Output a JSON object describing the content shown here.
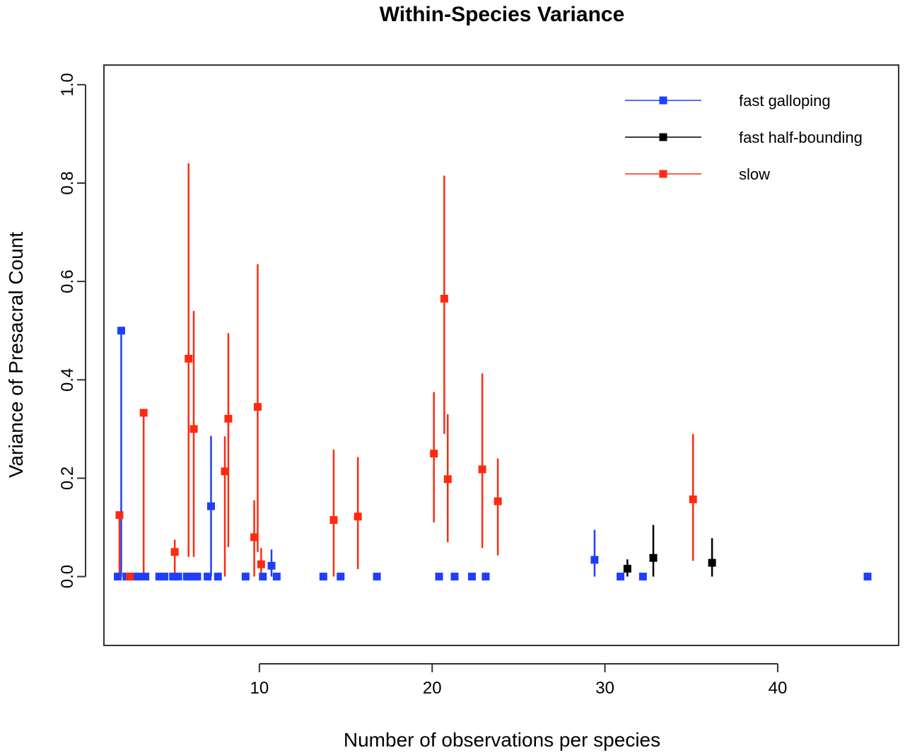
{
  "chart_data": {
    "type": "scatter",
    "title": "Within-Species Variance",
    "xlabel": "Number of observations per species",
    "ylabel": "Variance of Presacral Count",
    "xlim": [
      1,
      47
    ],
    "ylim": [
      -0.14,
      1.04
    ],
    "x_ticks": [
      10,
      20,
      30,
      40
    ],
    "y_ticks": [
      0.0,
      0.2,
      0.4,
      0.6,
      0.8,
      1.0
    ],
    "x_tick_labels": [
      "10",
      "20",
      "30",
      "40"
    ],
    "y_tick_labels": [
      "0.0",
      "0.2",
      "0.4",
      "0.6",
      "0.8",
      "1.0"
    ],
    "grid": false,
    "legend_position": "top-right",
    "error_bars": true,
    "series": [
      {
        "name": "fast galloping",
        "color": "#1f3fff",
        "points": [
          {
            "x": 1.8,
            "y": 0.0
          },
          {
            "x": 2.0,
            "y": 0.5,
            "lo": 0.0,
            "hi": 0.5
          },
          {
            "x": 2.3,
            "y": 0.0
          },
          {
            "x": 2.7,
            "y": 0.0
          },
          {
            "x": 3.0,
            "y": 0.0
          },
          {
            "x": 3.4,
            "y": 0.0
          },
          {
            "x": 4.2,
            "y": 0.0
          },
          {
            "x": 4.5,
            "y": 0.0
          },
          {
            "x": 5.0,
            "y": 0.0
          },
          {
            "x": 5.3,
            "y": 0.0
          },
          {
            "x": 5.8,
            "y": 0.0
          },
          {
            "x": 6.1,
            "y": 0.0
          },
          {
            "x": 6.4,
            "y": 0.0
          },
          {
            "x": 7.0,
            "y": 0.0
          },
          {
            "x": 7.2,
            "y": 0.143,
            "lo": 0.0,
            "hi": 0.286
          },
          {
            "x": 7.6,
            "y": 0.0
          },
          {
            "x": 9.2,
            "y": 0.0
          },
          {
            "x": 10.2,
            "y": 0.0
          },
          {
            "x": 10.7,
            "y": 0.022,
            "lo": 0.0,
            "hi": 0.055
          },
          {
            "x": 11.0,
            "y": 0.0
          },
          {
            "x": 13.7,
            "y": 0.0
          },
          {
            "x": 14.7,
            "y": 0.0
          },
          {
            "x": 16.8,
            "y": 0.0
          },
          {
            "x": 20.4,
            "y": 0.0
          },
          {
            "x": 21.3,
            "y": 0.0
          },
          {
            "x": 22.3,
            "y": 0.0
          },
          {
            "x": 23.1,
            "y": 0.0
          },
          {
            "x": 29.4,
            "y": 0.034,
            "lo": 0.0,
            "hi": 0.095
          },
          {
            "x": 30.9,
            "y": 0.0
          },
          {
            "x": 32.2,
            "y": 0.0
          },
          {
            "x": 45.2,
            "y": 0.0
          }
        ]
      },
      {
        "name": "fast half-bounding",
        "color": "#000000",
        "points": [
          {
            "x": 31.3,
            "y": 0.016,
            "lo": 0.0,
            "hi": 0.035
          },
          {
            "x": 32.8,
            "y": 0.038,
            "lo": 0.0,
            "hi": 0.105
          },
          {
            "x": 36.2,
            "y": 0.028,
            "lo": 0.0,
            "hi": 0.078
          }
        ]
      },
      {
        "name": "slow",
        "color": "#ff2a10",
        "points": [
          {
            "x": 1.9,
            "y": 0.125,
            "lo": 0.0,
            "hi": 0.125
          },
          {
            "x": 2.5,
            "y": 0.0
          },
          {
            "x": 3.3,
            "y": 0.333,
            "lo": 0.0,
            "hi": 0.333
          },
          {
            "x": 5.1,
            "y": 0.05,
            "lo": 0.0,
            "hi": 0.075
          },
          {
            "x": 5.9,
            "y": 0.443,
            "lo": 0.04,
            "hi": 0.84
          },
          {
            "x": 6.2,
            "y": 0.3,
            "lo": 0.04,
            "hi": 0.54
          },
          {
            "x": 8.0,
            "y": 0.214,
            "lo": 0.0,
            "hi": 0.285
          },
          {
            "x": 8.2,
            "y": 0.321,
            "lo": 0.06,
            "hi": 0.495
          },
          {
            "x": 9.7,
            "y": 0.08,
            "lo": 0.0,
            "hi": 0.155
          },
          {
            "x": 9.9,
            "y": 0.345,
            "lo": 0.05,
            "hi": 0.635
          },
          {
            "x": 10.1,
            "y": 0.025,
            "lo": 0.0,
            "hi": 0.058
          },
          {
            "x": 14.3,
            "y": 0.115,
            "lo": 0.0,
            "hi": 0.258
          },
          {
            "x": 15.7,
            "y": 0.122,
            "lo": 0.015,
            "hi": 0.243
          },
          {
            "x": 20.1,
            "y": 0.25,
            "lo": 0.11,
            "hi": 0.375
          },
          {
            "x": 20.7,
            "y": 0.565,
            "lo": 0.29,
            "hi": 0.815
          },
          {
            "x": 20.9,
            "y": 0.198,
            "lo": 0.07,
            "hi": 0.33
          },
          {
            "x": 22.9,
            "y": 0.218,
            "lo": 0.058,
            "hi": 0.413
          },
          {
            "x": 23.8,
            "y": 0.153,
            "lo": 0.043,
            "hi": 0.24
          },
          {
            "x": 35.1,
            "y": 0.157,
            "lo": 0.032,
            "hi": 0.29
          }
        ]
      }
    ]
  }
}
